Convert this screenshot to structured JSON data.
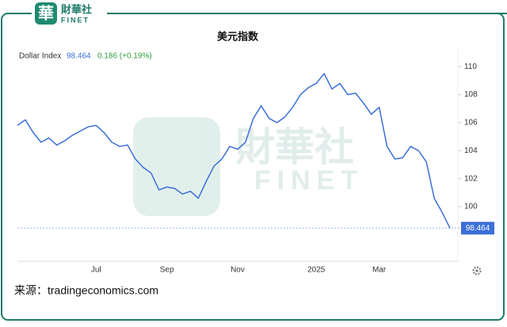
{
  "brand": {
    "icon": "華",
    "name": "財華社",
    "latin": "FINET"
  },
  "chart_data": {
    "type": "line",
    "title": "美元指数",
    "series": [
      {
        "name": "Dollar Index",
        "color": "#3b6fd8",
        "values": [
          105.8,
          106.2,
          105.3,
          104.6,
          104.9,
          104.4,
          104.7,
          105.1,
          105.4,
          105.7,
          105.8,
          105.3,
          104.6,
          104.3,
          104.4,
          103.4,
          102.8,
          102.4,
          101.2,
          101.4,
          101.3,
          100.9,
          101.1,
          100.6,
          101.8,
          102.9,
          103.4,
          104.3,
          104.1,
          104.6,
          106.3,
          107.2,
          106.3,
          106.0,
          106.4,
          107.1,
          108.0,
          108.5,
          108.8,
          109.5,
          108.4,
          108.8,
          108.0,
          108.1,
          107.4,
          106.6,
          107.1,
          104.3,
          103.4,
          103.5,
          104.3,
          104.0,
          103.2,
          100.6,
          99.6,
          98.464
        ]
      }
    ],
    "change": "0.186 (+0.19%)",
    "change_color": "#2e9e3a",
    "categories": [
      null,
      null,
      null,
      null,
      null,
      null,
      null,
      null,
      null,
      null,
      "Jul",
      null,
      null,
      null,
      null,
      null,
      null,
      null,
      null,
      "Sep",
      null,
      null,
      null,
      null,
      null,
      null,
      null,
      null,
      "Nov",
      null,
      null,
      null,
      null,
      null,
      null,
      null,
      null,
      null,
      "2025",
      null,
      null,
      null,
      null,
      null,
      null,
      null,
      "Mar",
      null,
      null,
      null,
      null,
      null,
      null,
      null,
      null,
      null
    ],
    "ylim": [
      96.1,
      111.25
    ],
    "yticks": [
      100,
      102,
      104,
      106,
      108,
      110
    ],
    "grid": false
  },
  "source": "来源：tradingeconomics.com",
  "watermark": {
    "name": "財華社",
    "latin": "FINET"
  }
}
